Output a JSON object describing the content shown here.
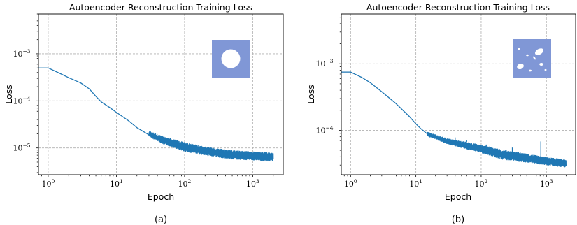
{
  "chart_data": [
    {
      "type": "line",
      "title": "Autoencoder Reconstruction Training Loss",
      "xlabel": "Epoch",
      "ylabel": "Loss",
      "caption": "(a)",
      "xscale": "log",
      "yscale": "log",
      "xlim": [
        0.72,
        2800
      ],
      "ylim": [
        2.7e-06,
        0.007
      ],
      "grid": true,
      "inset_icon": "single-circular-hole-geometry-icon",
      "x_ticks": [
        {
          "base": "10",
          "exp": "0",
          "value": 1
        },
        {
          "base": "10",
          "exp": "1",
          "value": 10
        },
        {
          "base": "10",
          "exp": "2",
          "value": 100
        },
        {
          "base": "10",
          "exp": "3",
          "value": 1000
        }
      ],
      "y_ticks": [
        {
          "base": "10",
          "exp": "−5",
          "value": 1e-05
        },
        {
          "base": "10",
          "exp": "−4",
          "value": 0.0001
        },
        {
          "base": "10",
          "exp": "−3",
          "value": 0.001
        }
      ],
      "series_color": "#1f77b4",
      "x": [
        0.72,
        1,
        1.5,
        2,
        3,
        4,
        5,
        6,
        8,
        10,
        15,
        20,
        30,
        50,
        100,
        200,
        500,
        1000,
        2000
      ],
      "y": [
        0.0005,
        0.0005,
        0.00038,
        0.00031,
        0.00024,
        0.00018,
        0.000125,
        9.5e-05,
        7.2e-05,
        5.7e-05,
        3.8e-05,
        2.7e-05,
        1.9e-05,
        1.4e-05,
        1.1e-05,
        8.5e-06,
        7.2e-06,
        6.5e-06,
        6.2e-06
      ],
      "noise_band": {
        "x_from": 30,
        "x_to": 2000,
        "lower_y": [
          1.7e-05,
          1.2e-05,
          8.5e-06,
          7e-06,
          5.8e-06,
          5.3e-06
        ],
        "upper_y": [
          2.3e-05,
          1.7e-05,
          1.3e-05,
          1.05e-05,
          8.8e-06,
          7.8e-06
        ],
        "at_x": [
          30,
          50,
          100,
          200,
          500,
          2000
        ]
      },
      "spikes": []
    },
    {
      "type": "line",
      "title": "Autoencoder Reconstruction Training Loss",
      "xlabel": "Epoch",
      "ylabel": "Loss",
      "caption": "(b)",
      "xscale": "log",
      "yscale": "log",
      "xlim": [
        0.72,
        2800
      ],
      "ylim": [
        2.15e-05,
        0.0056
      ],
      "grid": true,
      "inset_icon": "multiple-elliptical-holes-geometry-icon",
      "x_ticks": [
        {
          "base": "10",
          "exp": "0",
          "value": 1
        },
        {
          "base": "10",
          "exp": "1",
          "value": 10
        },
        {
          "base": "10",
          "exp": "2",
          "value": 100
        },
        {
          "base": "10",
          "exp": "3",
          "value": 1000
        }
      ],
      "y_ticks": [
        {
          "base": "10",
          "exp": "−4",
          "value": 0.0001
        },
        {
          "base": "10",
          "exp": "−3",
          "value": 0.001
        }
      ],
      "series_color": "#1f77b4",
      "x": [
        0.72,
        1,
        1.5,
        2,
        3,
        5,
        8,
        10,
        12,
        15,
        20,
        30,
        50,
        100,
        200,
        500,
        1000,
        2000
      ],
      "y": [
        0.00075,
        0.00075,
        0.00062,
        0.00052,
        0.00038,
        0.00025,
        0.00016,
        0.000125,
        0.000105,
        8.8e-05,
        7.3e-05,
        6.4e-05,
        5.5e-05,
        4.6e-05,
        4e-05,
        3.5e-05,
        3.2e-05,
        3e-05
      ],
      "noise_band": {
        "x_from": 15,
        "x_to": 2000,
        "lower_y": [
          8.2e-05,
          6.3e-05,
          4.6e-05,
          3.7e-05,
          3.3e-05,
          3e-05,
          2.8e-05
        ],
        "upper_y": [
          9.4e-05,
          7.5e-05,
          6e-05,
          5.1e-05,
          4.4e-05,
          3.9e-05,
          3.6e-05
        ],
        "at_x": [
          15,
          30,
          100,
          200,
          500,
          1000,
          2000
        ]
      },
      "spikes": [
        {
          "x": 40,
          "y": 7.8e-05
        },
        {
          "x": 60,
          "y": 7.1e-05
        },
        {
          "x": 120,
          "y": 6.1e-05
        },
        {
          "x": 300,
          "y": 5.5e-05
        },
        {
          "x": 820,
          "y": 6.8e-05
        }
      ]
    }
  ]
}
